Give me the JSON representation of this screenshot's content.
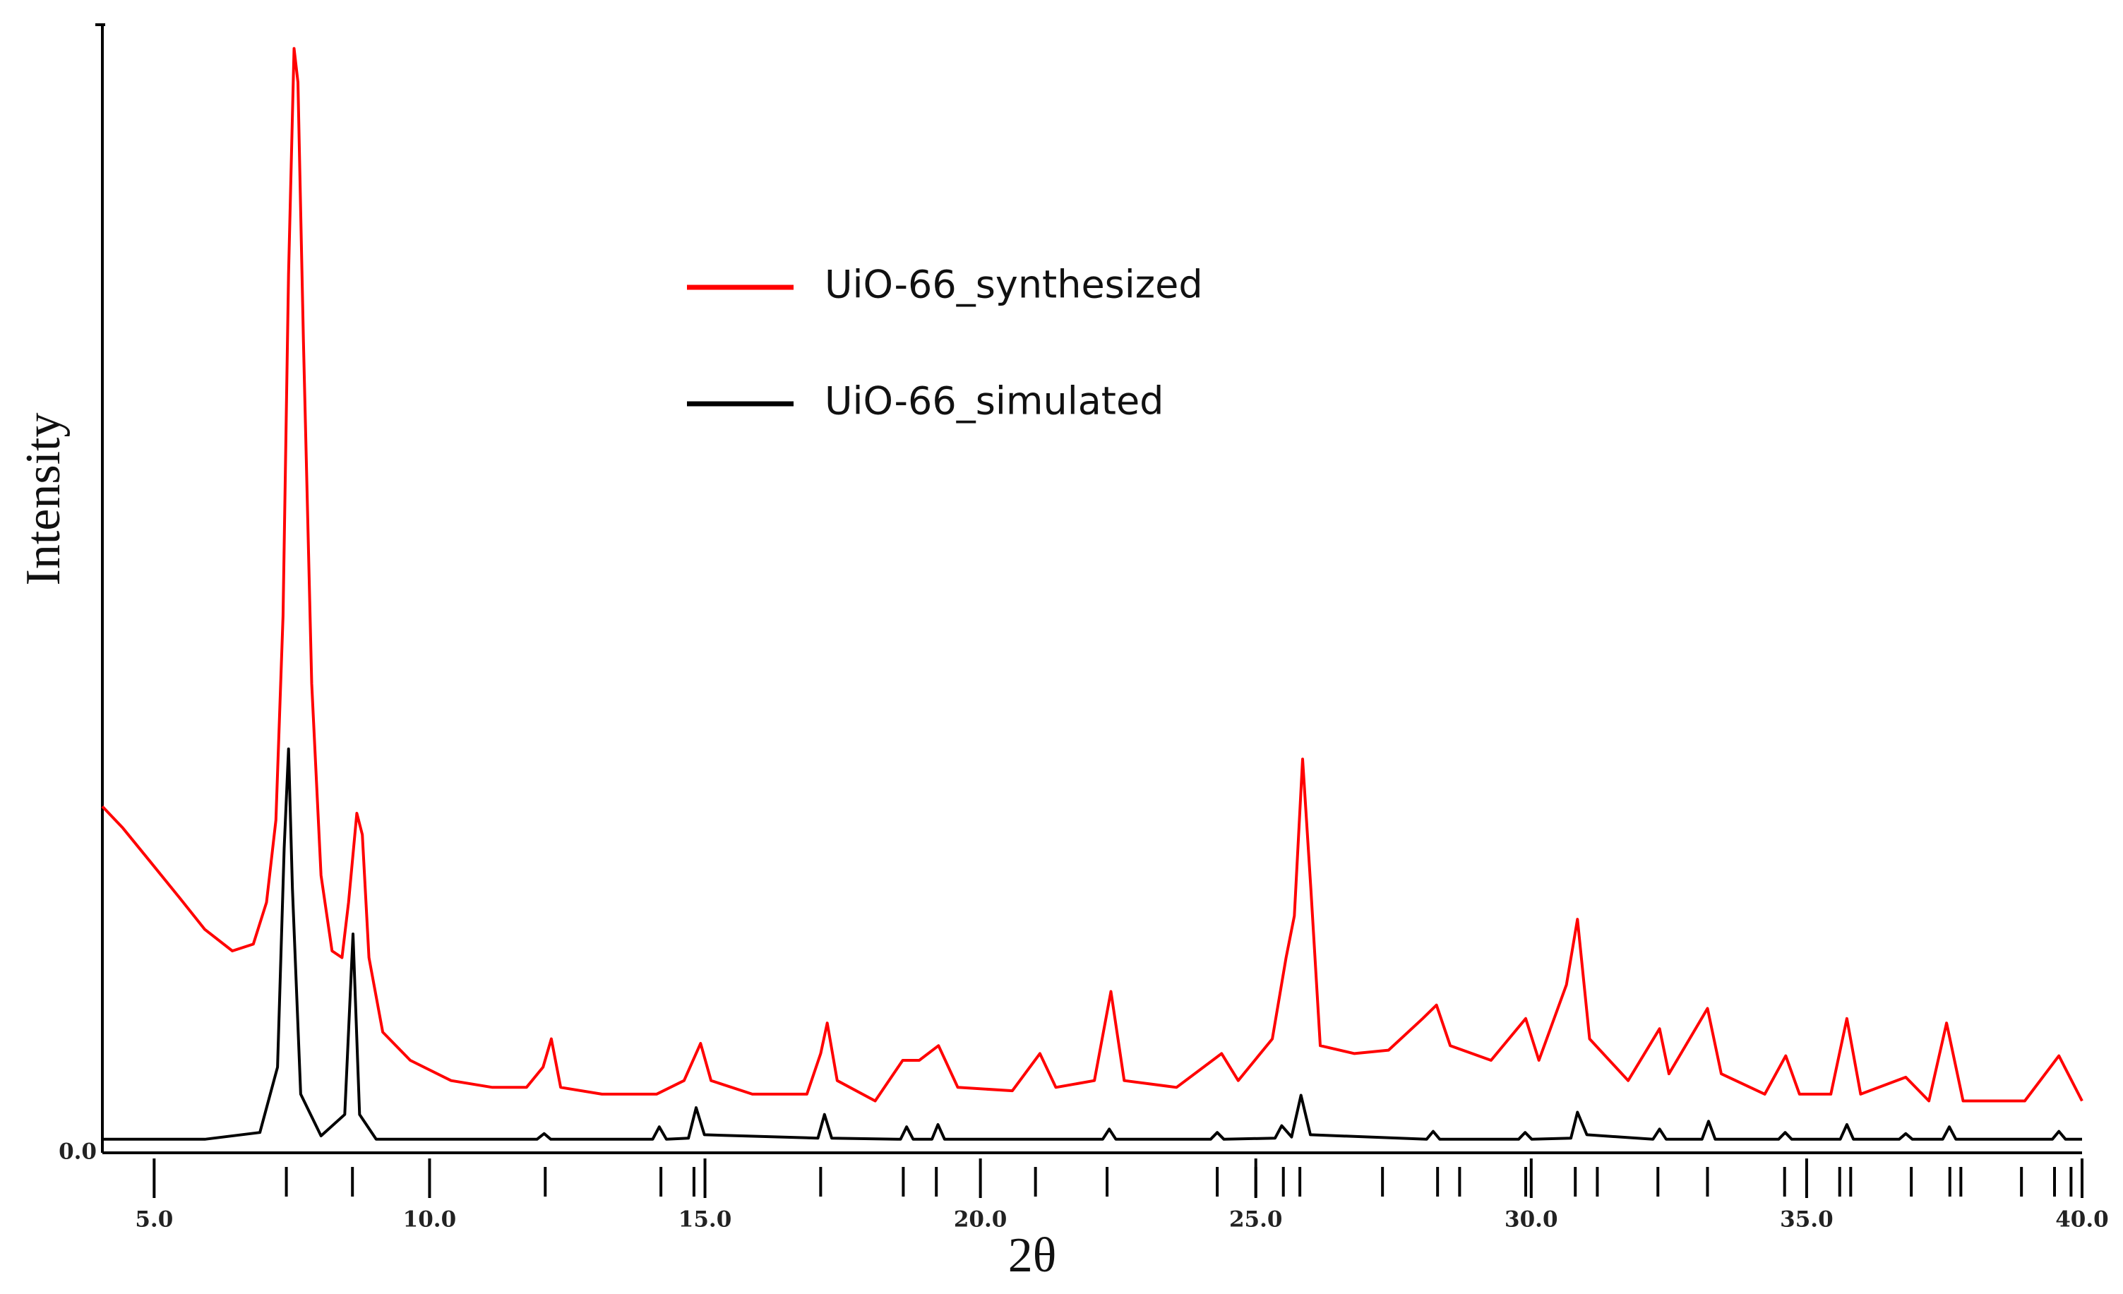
{
  "chart_data": {
    "type": "line",
    "xlabel": "2θ",
    "ylabel": "Intensity",
    "xlim": [
      4.06,
      40
    ],
    "ylim": [
      0,
      100
    ],
    "xticks": [
      {
        "value": 5,
        "label": "5.0"
      },
      {
        "value": 10,
        "label": "10.0"
      },
      {
        "value": 15,
        "label": "15.0"
      },
      {
        "value": 20,
        "label": "20.0"
      },
      {
        "value": 25,
        "label": "25.0"
      },
      {
        "value": 30,
        "label": "30.0"
      },
      {
        "value": 35,
        "label": "35.0"
      },
      {
        "value": 40,
        "label": "40.0"
      }
    ],
    "yticks": [
      {
        "value": 0,
        "label": "0.0"
      }
    ],
    "grid": false,
    "reflections": [
      7.4,
      8.6,
      12.1,
      14.2,
      14.8,
      17.1,
      18.6,
      19.2,
      21.0,
      22.3,
      24.3,
      25.0,
      25.5,
      25.8,
      27.3,
      28.3,
      28.7,
      29.9,
      30.8,
      31.2,
      32.3,
      33.2,
      34.6,
      35.6,
      35.8,
      36.9,
      37.6,
      37.8,
      38.9,
      39.5,
      39.8
    ],
    "series": [
      {
        "name": "UiO-66_synthesized",
        "color": "#ff0000",
        "x": [
          4.06,
          4.43,
          4.93,
          5.43,
          5.92,
          6.42,
          6.8,
          7.04,
          7.21,
          7.34,
          7.44,
          7.54,
          7.61,
          7.71,
          7.86,
          8.03,
          8.23,
          8.41,
          8.53,
          8.68,
          8.78,
          8.9,
          9.15,
          9.65,
          10.39,
          11.14,
          11.76,
          12.06,
          12.21,
          12.38,
          13.13,
          14.12,
          14.62,
          14.92,
          15.11,
          15.86,
          16.85,
          17.1,
          17.22,
          17.4,
          18.09,
          18.59,
          18.89,
          19.24,
          19.59,
          20.58,
          21.08,
          21.37,
          22.07,
          22.37,
          22.61,
          23.56,
          24.38,
          24.68,
          25.3,
          25.55,
          25.7,
          25.85,
          26.0,
          26.17,
          26.79,
          27.41,
          28.03,
          28.28,
          28.53,
          29.27,
          29.9,
          30.14,
          30.64,
          30.84,
          31.06,
          31.76,
          32.33,
          32.5,
          33.2,
          33.45,
          34.24,
          34.62,
          34.87,
          35.44,
          35.73,
          35.98,
          36.8,
          37.22,
          37.54,
          37.84,
          38.96,
          39.58,
          40.0
        ],
        "values": [
          30.7,
          28.8,
          25.8,
          22.8,
          19.8,
          17.9,
          18.5,
          22.2,
          29.5,
          47.6,
          77.9,
          97.9,
          94.9,
          71.9,
          41.6,
          24.6,
          17.9,
          17.3,
          22.2,
          30.1,
          28.2,
          17.3,
          10.7,
          8.2,
          6.4,
          5.8,
          5.8,
          7.6,
          10.1,
          5.8,
          5.2,
          5.2,
          6.4,
          9.7,
          6.4,
          5.2,
          5.2,
          8.8,
          11.5,
          6.4,
          4.6,
          8.2,
          8.2,
          9.5,
          5.8,
          5.5,
          8.8,
          5.8,
          6.4,
          14.3,
          6.4,
          5.8,
          8.8,
          6.4,
          10.1,
          17.3,
          21.0,
          34.9,
          23.4,
          9.5,
          8.8,
          9.1,
          11.9,
          13.1,
          9.5,
          8.2,
          11.9,
          8.2,
          14.9,
          20.7,
          10.1,
          6.4,
          11.0,
          7.0,
          12.8,
          7.0,
          5.2,
          8.6,
          5.2,
          5.2,
          11.9,
          5.2,
          6.7,
          4.6,
          11.5,
          4.6,
          4.6,
          8.6,
          4.6
        ]
      },
      {
        "name": "UiO-66_simulated",
        "color": "#000000",
        "x": [
          4.06,
          5.92,
          6.92,
          7.24,
          7.36,
          7.44,
          7.51,
          7.66,
          8.03,
          8.46,
          8.61,
          8.73,
          9.03,
          11.95,
          12.08,
          12.2,
          14.05,
          14.17,
          14.3,
          14.7,
          14.84,
          14.99,
          17.05,
          17.17,
          17.3,
          18.55,
          18.66,
          18.78,
          19.12,
          19.23,
          19.35,
          22.22,
          22.34,
          22.46,
          24.18,
          24.3,
          24.42,
          25.35,
          25.47,
          25.65,
          25.82,
          25.99,
          28.1,
          28.22,
          28.34,
          29.77,
          29.89,
          30.01,
          30.72,
          30.84,
          31.01,
          32.21,
          32.33,
          32.45,
          33.1,
          33.22,
          33.34,
          34.49,
          34.61,
          34.73,
          35.61,
          35.73,
          35.85,
          36.68,
          36.8,
          36.92,
          37.47,
          37.59,
          37.71,
          39.46,
          39.58,
          39.7,
          40.0
        ],
        "values": [
          1.2,
          1.2,
          1.8,
          7.6,
          27.0,
          35.8,
          23.4,
          5.2,
          1.5,
          3.4,
          19.4,
          3.4,
          1.2,
          1.2,
          1.7,
          1.2,
          1.2,
          2.3,
          1.2,
          1.3,
          4.0,
          1.6,
          1.3,
          3.4,
          1.3,
          1.2,
          2.3,
          1.2,
          1.2,
          2.5,
          1.2,
          1.2,
          2.1,
          1.2,
          1.2,
          1.8,
          1.2,
          1.3,
          2.4,
          1.4,
          5.1,
          1.6,
          1.2,
          1.9,
          1.2,
          1.2,
          1.8,
          1.2,
          1.3,
          3.6,
          1.6,
          1.2,
          2.1,
          1.2,
          1.2,
          2.8,
          1.2,
          1.2,
          1.8,
          1.2,
          1.2,
          2.5,
          1.2,
          1.2,
          1.7,
          1.2,
          1.2,
          2.3,
          1.2,
          1.2,
          1.9,
          1.2,
          1.2
        ]
      }
    ]
  }
}
